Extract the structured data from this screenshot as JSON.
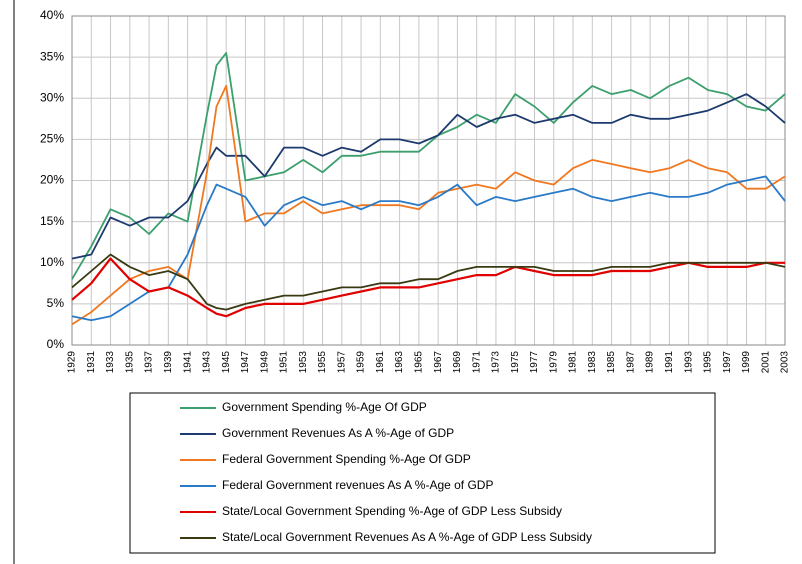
{
  "chart_data": {
    "type": "line",
    "x": [
      1929,
      1931,
      1933,
      1935,
      1937,
      1939,
      1941,
      1943,
      1944,
      1945,
      1947,
      1949,
      1951,
      1953,
      1955,
      1957,
      1959,
      1961,
      1963,
      1965,
      1967,
      1969,
      1971,
      1973,
      1975,
      1977,
      1979,
      1981,
      1983,
      1985,
      1987,
      1989,
      1991,
      1993,
      1995,
      1997,
      1999,
      2001,
      2003
    ],
    "xlim": [
      1929,
      2003
    ],
    "xticks": [
      1929,
      1931,
      1933,
      1935,
      1937,
      1939,
      1941,
      1943,
      1945,
      1947,
      1949,
      1951,
      1953,
      1955,
      1957,
      1959,
      1961,
      1963,
      1965,
      1967,
      1969,
      1971,
      1973,
      1975,
      1977,
      1979,
      1981,
      1983,
      1985,
      1987,
      1989,
      1991,
      1993,
      1995,
      1997,
      1999,
      2001,
      2003
    ],
    "ylim": [
      0,
      40
    ],
    "yticks": [
      {
        "value": 0,
        "label": "0%"
      },
      {
        "value": 5,
        "label": "5%"
      },
      {
        "value": 10,
        "label": "10%"
      },
      {
        "value": 15,
        "label": "15%"
      },
      {
        "value": 20,
        "label": "20%"
      },
      {
        "value": 25,
        "label": "25%"
      },
      {
        "value": 30,
        "label": "30%"
      },
      {
        "value": 35,
        "label": "35%"
      },
      {
        "value": 40,
        "label": "40%"
      }
    ],
    "grid": true,
    "legend": "bottom",
    "series": [
      {
        "name": "Government Spending %-Age Of GDP",
        "color": "#3c9f6e",
        "values": [
          8,
          12,
          16.5,
          15.5,
          13.5,
          16,
          15,
          28,
          34,
          35.5,
          20,
          20.5,
          21,
          22.5,
          21,
          23,
          23,
          23.5,
          23.5,
          23.5,
          25.5,
          26.5,
          28,
          27,
          30.5,
          29,
          27,
          29.5,
          31.5,
          30.5,
          31,
          30,
          31.5,
          32.5,
          31,
          30.5,
          29,
          28.5,
          30.5
        ]
      },
      {
        "name": "Government Revenues As A %-Age of GDP",
        "color": "#1c3a6e",
        "values": [
          10.5,
          11,
          15.5,
          14.5,
          15.5,
          15.5,
          17.5,
          22,
          24,
          23,
          23,
          20.5,
          24,
          24,
          23,
          24,
          23.5,
          25,
          25,
          24.5,
          25.5,
          28,
          26.5,
          27.5,
          28,
          27,
          27.5,
          28,
          27,
          27,
          28,
          27.5,
          27.5,
          28,
          28.5,
          29.5,
          30.5,
          29,
          27
        ]
      },
      {
        "name": "Federal Government Spending %-Age Of GDP",
        "color": "#f07820",
        "values": [
          2.5,
          4,
          6,
          8,
          9,
          9.5,
          8,
          21,
          29,
          31.5,
          15,
          16,
          16,
          17.5,
          16,
          16.5,
          17,
          17,
          17,
          16.5,
          18.5,
          19,
          19.5,
          19,
          21,
          20,
          19.5,
          21.5,
          22.5,
          22,
          21.5,
          21,
          21.5,
          22.5,
          21.5,
          21,
          19,
          19,
          20.5
        ]
      },
      {
        "name": "Federal Government revenues As A %-Age of GDP",
        "color": "#2a7ac8",
        "values": [
          3.5,
          3,
          3.5,
          5,
          6.5,
          7,
          11,
          17,
          19.5,
          19,
          18,
          14.5,
          17,
          18,
          17,
          17.5,
          16.5,
          17.5,
          17.5,
          17,
          18,
          19.5,
          17,
          18,
          17.5,
          18,
          18.5,
          19,
          18,
          17.5,
          18,
          18.5,
          18,
          18,
          18.5,
          19.5,
          20,
          20.5,
          17.5
        ]
      },
      {
        "name": "State/Local Government Spending %-Age of GDP Less Subsidy",
        "color": "#e00000",
        "values": [
          5.5,
          7.5,
          10.5,
          8,
          6.5,
          7,
          6,
          4.5,
          3.8,
          3.5,
          4.5,
          5,
          5,
          5,
          5.5,
          6,
          6.5,
          7,
          7,
          7,
          7.5,
          8,
          8.5,
          8.5,
          9.5,
          9,
          8.5,
          8.5,
          8.5,
          9,
          9,
          9,
          9.5,
          10,
          9.5,
          9.5,
          9.5,
          10,
          10
        ]
      },
      {
        "name": "State/Local Government Revenues As A %-Age of GDP Less Subsidy",
        "color": "#3a3a12",
        "values": [
          7,
          9,
          11,
          9.5,
          8.5,
          9,
          8,
          5,
          4.5,
          4.3,
          5,
          5.5,
          6,
          6,
          6.5,
          7,
          7,
          7.5,
          7.5,
          8,
          8,
          9,
          9.5,
          9.5,
          9.5,
          9.5,
          9,
          9,
          9,
          9.5,
          9.5,
          9.5,
          10,
          10,
          10,
          10,
          10,
          10,
          9.5
        ]
      }
    ]
  }
}
